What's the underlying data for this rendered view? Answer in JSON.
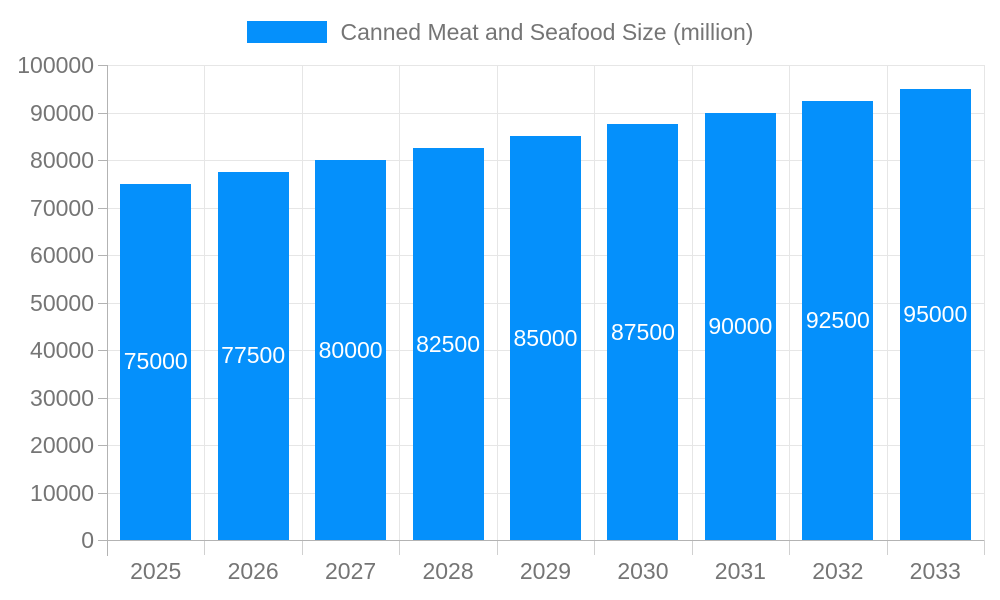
{
  "chart_data": {
    "type": "bar",
    "title": "Canned Meat and Seafood Size (million)",
    "categories": [
      "2025",
      "2026",
      "2027",
      "2028",
      "2029",
      "2030",
      "2031",
      "2032",
      "2033"
    ],
    "values": [
      75000,
      77500,
      80000,
      82500,
      85000,
      87500,
      90000,
      92500,
      95000
    ],
    "bar_labels": [
      "75000",
      "77500",
      "80000",
      "82500",
      "85000",
      "87500",
      "90000",
      "92500",
      "95000"
    ],
    "xlabel": "",
    "ylabel": "",
    "ylim": [
      0,
      100000
    ],
    "ytick_step": 10000,
    "ytick_labels": [
      "0",
      "10000",
      "20000",
      "30000",
      "40000",
      "50000",
      "60000",
      "70000",
      "80000",
      "90000",
      "100000"
    ],
    "grid": true,
    "legend_position": "top-center",
    "bar_color": "#0590FB",
    "bar_label_color": "#ffffff",
    "axis_text_color": "#757575",
    "gridline_color": "#e6e6e6",
    "axis_line_color": "#b3b3b3"
  }
}
